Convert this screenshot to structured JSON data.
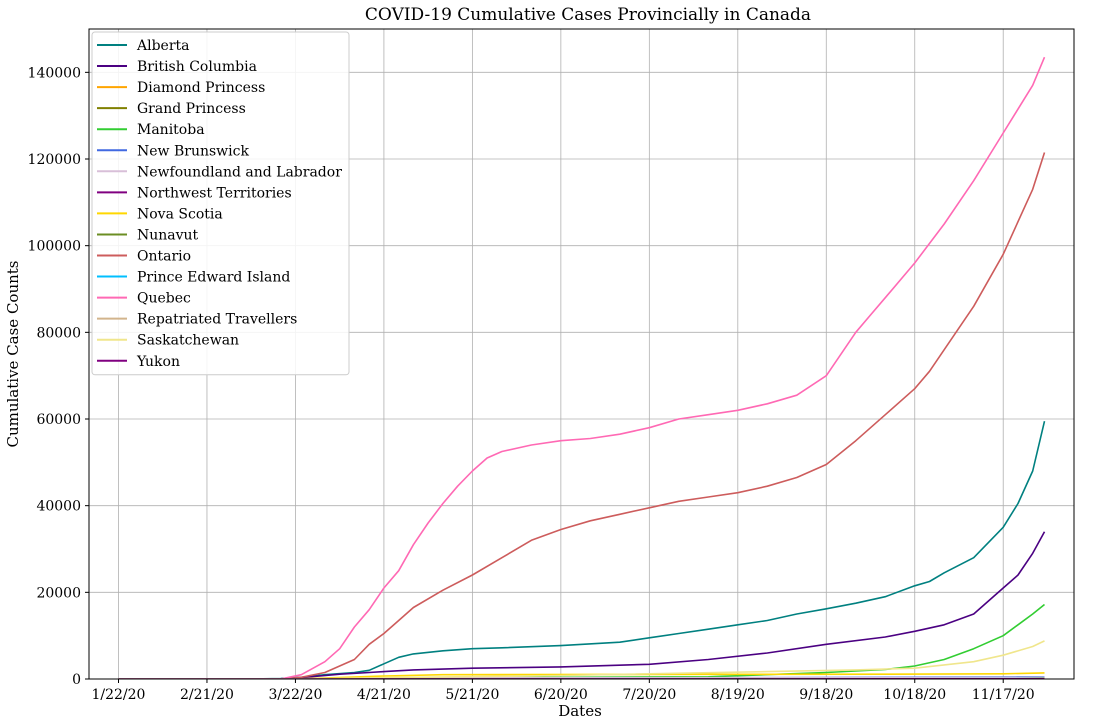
{
  "chart_data": {
    "type": "line",
    "title": "COVID-19 Cumulative Cases Provincially in Canada",
    "xlabel": "Dates",
    "ylabel": "Cumulative Case Counts",
    "x_tick_labels": [
      "1/22/20",
      "2/21/20",
      "3/22/20",
      "4/21/20",
      "5/21/20",
      "6/20/20",
      "7/20/20",
      "8/19/20",
      "9/18/20",
      "10/18/20",
      "11/17/20"
    ],
    "x_tick_days": [
      0,
      30,
      60,
      90,
      120,
      150,
      180,
      210,
      240,
      270,
      300
    ],
    "xlim": [
      -10,
      324
    ],
    "ylim": [
      0,
      150000
    ],
    "y_ticks": [
      0,
      20000,
      40000,
      60000,
      80000,
      100000,
      120000,
      140000
    ],
    "grid": true,
    "legend_position": "top-left",
    "series": [
      {
        "name": "Alberta",
        "color": "#008080",
        "x": [
          0,
          45,
          55,
          62,
          70,
          80,
          85,
          90,
          95,
          100,
          110,
          120,
          130,
          150,
          170,
          180,
          190,
          200,
          210,
          220,
          230,
          240,
          250,
          260,
          270,
          275,
          280,
          290,
          300,
          305,
          310,
          314
        ],
        "y": [
          0,
          0,
          100,
          400,
          1000,
          1500,
          2000,
          3500,
          5000,
          5800,
          6500,
          7000,
          7200,
          7700,
          8500,
          9500,
          10500,
          11500,
          12500,
          13500,
          15000,
          16200,
          17500,
          19000,
          21500,
          22500,
          24500,
          28000,
          35000,
          40500,
          48000,
          59500
        ]
      },
      {
        "name": "British Columbia",
        "color": "#4b0082",
        "x": [
          0,
          45,
          55,
          65,
          75,
          85,
          90,
          100,
          120,
          150,
          180,
          200,
          220,
          240,
          260,
          270,
          280,
          290,
          300,
          305,
          310,
          314
        ],
        "y": [
          0,
          0,
          50,
          500,
          1100,
          1500,
          1700,
          2100,
          2500,
          2800,
          3400,
          4500,
          6000,
          8000,
          9700,
          11000,
          12500,
          15000,
          21000,
          24000,
          29000,
          34000
        ]
      },
      {
        "name": "Diamond Princess",
        "color": "#ffa500",
        "x": [
          0,
          314
        ],
        "y": [
          0,
          0
        ]
      },
      {
        "name": "Grand Princess",
        "color": "#808000",
        "x": [
          0,
          314
        ],
        "y": [
          10,
          10
        ]
      },
      {
        "name": "Manitoba",
        "color": "#32cd32",
        "x": [
          0,
          60,
          90,
          200,
          240,
          260,
          270,
          280,
          290,
          300,
          305,
          310,
          314
        ],
        "y": [
          0,
          0,
          200,
          500,
          1500,
          2200,
          3000,
          4500,
          7000,
          10000,
          12500,
          15000,
          17200
        ]
      },
      {
        "name": "New Brunswick",
        "color": "#4169e1",
        "x": [
          0,
          60,
          90,
          314
        ],
        "y": [
          0,
          0,
          120,
          450
        ]
      },
      {
        "name": "Newfoundland and Labrador",
        "color": "#d8bfd8",
        "x": [
          0,
          60,
          90,
          314
        ],
        "y": [
          0,
          0,
          250,
          330
        ]
      },
      {
        "name": "Northwest Territories",
        "color": "#800080",
        "x": [
          0,
          314
        ],
        "y": [
          0,
          15
        ]
      },
      {
        "name": "Nova Scotia",
        "color": "#ffd700",
        "x": [
          0,
          60,
          90,
          110,
          200,
          260,
          300,
          314
        ],
        "y": [
          0,
          0,
          700,
          1000,
          1080,
          1100,
          1200,
          1400
        ]
      },
      {
        "name": "Nunavut",
        "color": "#6b8e23",
        "x": [
          0,
          300,
          314
        ],
        "y": [
          0,
          0,
          160
        ]
      },
      {
        "name": "Ontario",
        "color": "#cd5c5c",
        "x": [
          0,
          55,
          62,
          70,
          80,
          85,
          90,
          95,
          100,
          110,
          120,
          130,
          140,
          150,
          160,
          170,
          180,
          190,
          200,
          210,
          220,
          230,
          240,
          250,
          260,
          270,
          275,
          280,
          290,
          300,
          310,
          314
        ],
        "y": [
          0,
          0,
          400,
          1500,
          4500,
          8000,
          10500,
          13500,
          16500,
          20500,
          24000,
          28000,
          32000,
          34500,
          36500,
          38000,
          39500,
          41000,
          42000,
          43000,
          44500,
          46500,
          49500,
          55000,
          61000,
          67000,
          71000,
          76000,
          86000,
          98000,
          113000,
          121500
        ]
      },
      {
        "name": "Prince Edward Island",
        "color": "#00bfff",
        "x": [
          0,
          60,
          90,
          314
        ],
        "y": [
          0,
          0,
          30,
          80
        ]
      },
      {
        "name": "Quebec",
        "color": "#ff69b4",
        "x": [
          0,
          55,
          62,
          70,
          75,
          80,
          85,
          90,
          95,
          100,
          105,
          110,
          115,
          120,
          125,
          130,
          140,
          150,
          160,
          170,
          180,
          190,
          200,
          210,
          220,
          230,
          240,
          250,
          255,
          260,
          270,
          280,
          290,
          300,
          310,
          314
        ],
        "y": [
          0,
          0,
          1000,
          4000,
          7000,
          12000,
          16000,
          21000,
          25000,
          31000,
          36000,
          40500,
          44500,
          48000,
          51000,
          52500,
          54000,
          55000,
          55500,
          56500,
          58000,
          60000,
          61000,
          62000,
          63500,
          65500,
          70000,
          80000,
          84000,
          88000,
          96000,
          105000,
          115000,
          126000,
          137000,
          143500
        ]
      },
      {
        "name": "Repatriated Travellers",
        "color": "#d2b48c",
        "x": [
          0,
          55,
          65,
          314
        ],
        "y": [
          0,
          0,
          13,
          13
        ]
      },
      {
        "name": "Saskatchewan",
        "color": "#f0e68c",
        "x": [
          0,
          60,
          90,
          150,
          220,
          250,
          270,
          290,
          300,
          310,
          314
        ],
        "y": [
          0,
          0,
          300,
          800,
          1700,
          2100,
          2500,
          4000,
          5500,
          7500,
          8800
        ]
      },
      {
        "name": "Yukon",
        "color": "#800080",
        "x": [
          0,
          60,
          314
        ],
        "y": [
          0,
          0,
          40
        ]
      }
    ]
  }
}
